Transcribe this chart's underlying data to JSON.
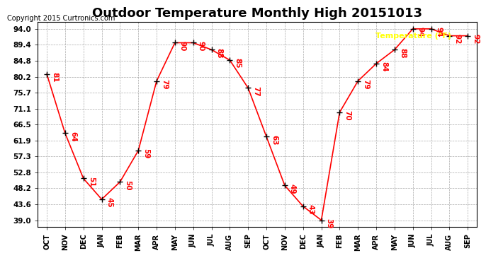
{
  "title": "Outdoor Temperature Monthly High 20151013",
  "copyright": "Copyright 2015 Curtronics.com",
  "legend_label": "Temperature (°F)",
  "x_labels": [
    "OCT",
    "NOV",
    "DEC",
    "JAN",
    "FEB",
    "MAR",
    "APR",
    "MAY",
    "JUN",
    "JUL",
    "AUG",
    "SEP",
    "OCT",
    "NOV",
    "DEC",
    "JAN",
    "FEB",
    "MAR",
    "APR",
    "MAY",
    "JUN",
    "JUL",
    "AUG",
    "SEP"
  ],
  "y_values": [
    81,
    64,
    51,
    45,
    50,
    59,
    79,
    90,
    90,
    88,
    85,
    77,
    63,
    49,
    43,
    39,
    70,
    79,
    84,
    88,
    94,
    94,
    92,
    92
  ],
  "y_ticks": [
    39.0,
    43.6,
    48.2,
    52.8,
    57.3,
    61.9,
    66.5,
    71.1,
    75.7,
    80.2,
    84.8,
    89.4,
    94.0
  ],
  "ylim": [
    37.0,
    96.0
  ],
  "line_color": "red",
  "marker_color": "black",
  "label_color": "red",
  "grid_color": "#aaaaaa",
  "background_color": "white",
  "title_fontsize": 13,
  "legend_bg": "red",
  "legend_fg": "yellow"
}
